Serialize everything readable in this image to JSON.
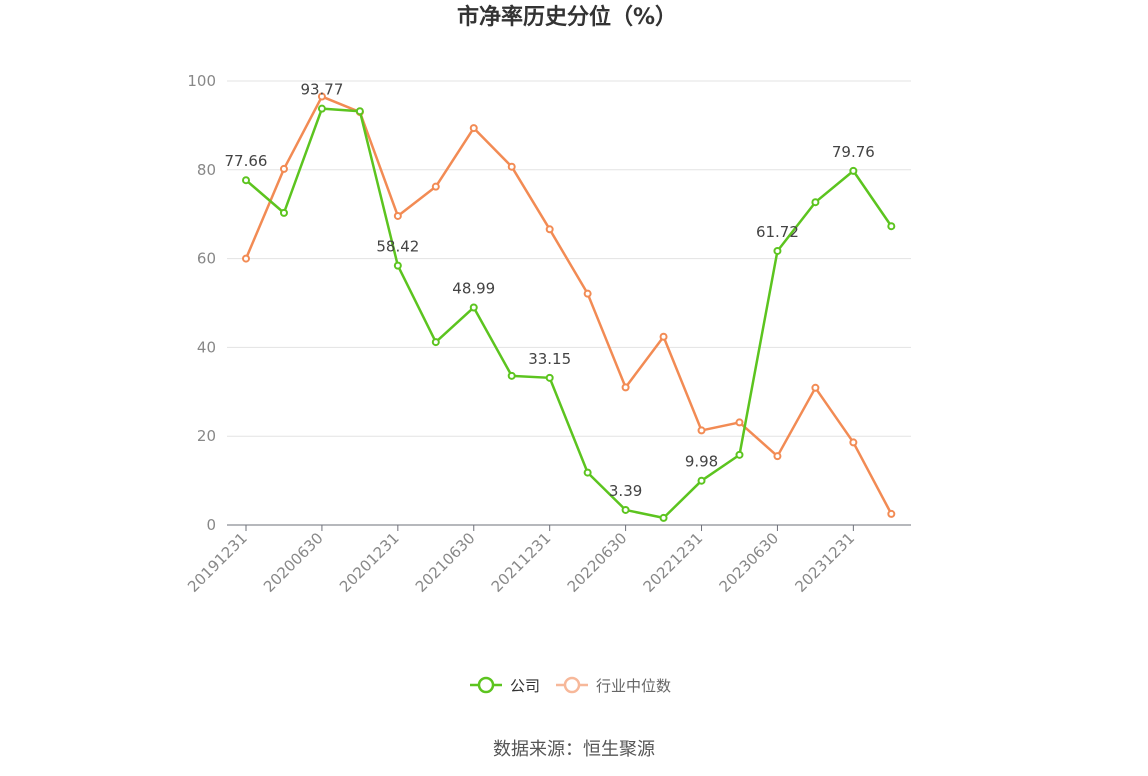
{
  "chart_data": {
    "type": "line",
    "title": "市净率历史分位（%）",
    "x": [
      "20191231",
      "20200331",
      "20200630",
      "20200930",
      "20201231",
      "20210331",
      "20210630",
      "20210930",
      "20211231",
      "20220331",
      "20220630",
      "20220930",
      "20221231",
      "20230331",
      "20230630",
      "20230930",
      "20231231",
      "20240331"
    ],
    "x_tick_labels": [
      "20191231",
      "20200630",
      "20201231",
      "20210630",
      "20211231",
      "20220630",
      "20221231",
      "20230630",
      "20231231"
    ],
    "ylim": [
      0,
      100
    ],
    "y_ticks": [
      0,
      20,
      40,
      60,
      80,
      100
    ],
    "grid": true,
    "legend_position": "bottom-center",
    "series": [
      {
        "name": "公司",
        "color": "#5cc41f",
        "values": [
          77.66,
          70.3,
          93.77,
          93.2,
          58.42,
          41.2,
          48.99,
          33.6,
          33.15,
          11.8,
          3.39,
          1.6,
          9.98,
          15.8,
          61.72,
          72.7,
          79.76,
          67.3
        ],
        "data_labels": [
          "77.66",
          null,
          "93.77",
          null,
          "58.42",
          null,
          "48.99",
          null,
          "33.15",
          null,
          "3.39",
          null,
          "9.98",
          null,
          "61.72",
          null,
          "79.76",
          null
        ]
      },
      {
        "name": "行业中位数",
        "color": "#f28b54",
        "values": [
          60.0,
          80.2,
          96.5,
          93.0,
          69.6,
          76.2,
          89.4,
          80.7,
          66.6,
          52.1,
          31.0,
          42.4,
          21.3,
          23.1,
          15.5,
          30.9,
          18.6,
          2.5
        ],
        "data_labels": []
      }
    ],
    "source": "数据来源：恒生聚源"
  }
}
